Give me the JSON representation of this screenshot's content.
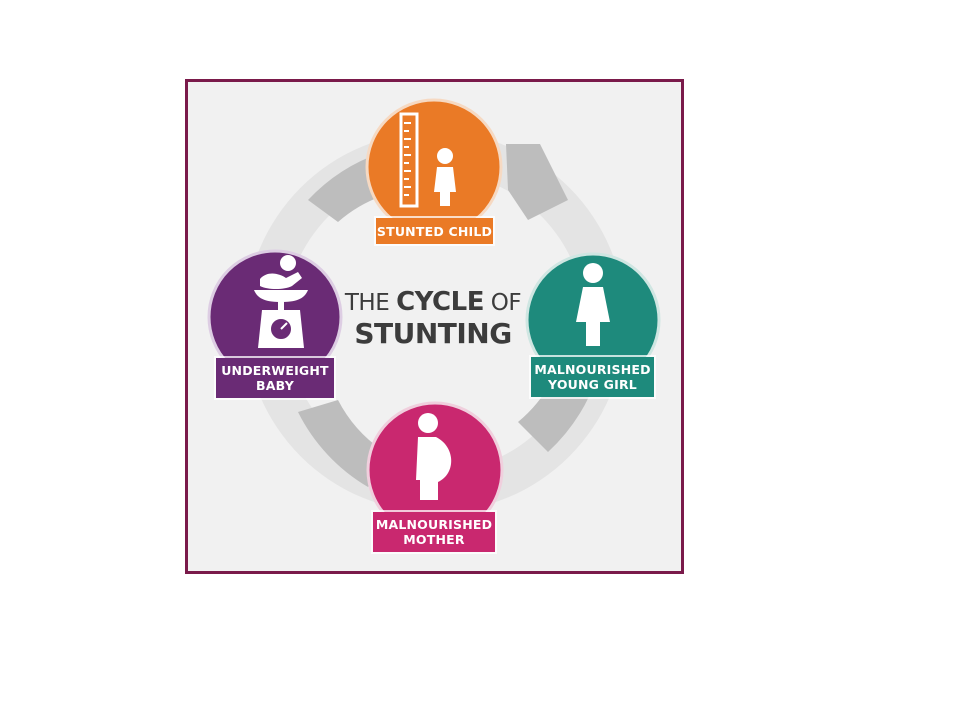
{
  "title": {
    "prefix": "THE",
    "emphasis": "CYCLE",
    "connector": "OF",
    "line2": "STUNTING"
  },
  "nodes": {
    "stunted_child": {
      "line1": "STUNTED CHILD",
      "line2": "",
      "color": "#ea7a26",
      "icon": "ruler-child-icon"
    },
    "young_girl": {
      "line1": "MALNOURISHED",
      "line2": "YOUNG GIRL",
      "color": "#1e8a7c",
      "icon": "girl-icon"
    },
    "mother": {
      "line1": "MALNOURISHED",
      "line2": "MOTHER",
      "color": "#c9286f",
      "icon": "pregnant-woman-icon"
    },
    "baby": {
      "line1": "UNDERWEIGHT",
      "line2": "BABY",
      "color": "#6a2b75",
      "icon": "baby-scale-icon"
    }
  },
  "colors": {
    "frame": "#7a1a4a",
    "ring": "#c9c9c9",
    "ring_light": "#dcdcdc",
    "background": "#f1f1f1"
  }
}
